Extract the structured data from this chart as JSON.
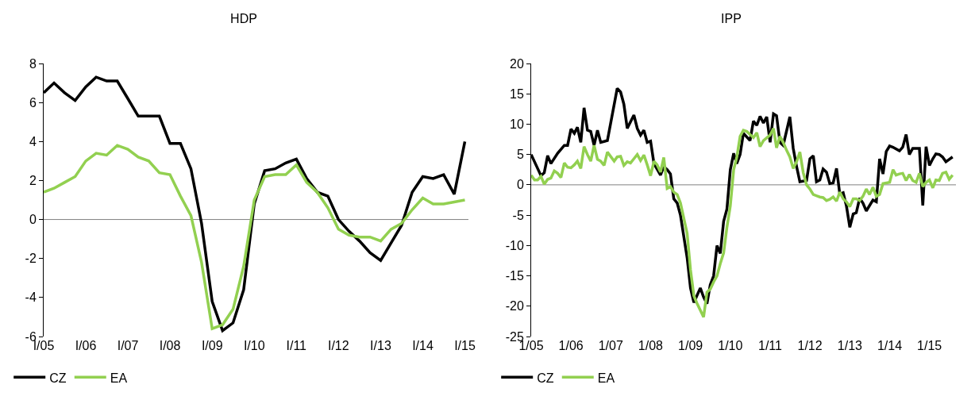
{
  "chart_data": [
    {
      "type": "line",
      "title": "HDP",
      "x": [
        "2005-01",
        "2005-04",
        "2005-07",
        "2005-10",
        "2006-01",
        "2006-04",
        "2006-07",
        "2006-10",
        "2007-01",
        "2007-04",
        "2007-07",
        "2007-10",
        "2008-01",
        "2008-04",
        "2008-07",
        "2008-10",
        "2009-01",
        "2009-04",
        "2009-07",
        "2009-10",
        "2010-01",
        "2010-04",
        "2010-07",
        "2010-10",
        "2011-01",
        "2011-04",
        "2011-07",
        "2011-10",
        "2012-01",
        "2012-04",
        "2012-07",
        "2012-10",
        "2013-01",
        "2013-04",
        "2013-07",
        "2013-10",
        "2014-01",
        "2014-04",
        "2014-07",
        "2014-10",
        "2015-01"
      ],
      "series": [
        {
          "name": "CZ",
          "color": "#000000",
          "values": [
            6.5,
            7.0,
            6.5,
            6.1,
            6.8,
            7.3,
            7.1,
            7.1,
            6.2,
            5.3,
            5.3,
            5.3,
            3.9,
            3.9,
            2.6,
            -0.2,
            -4.2,
            -5.7,
            -5.3,
            -3.6,
            0.8,
            2.5,
            2.6,
            2.9,
            3.1,
            2.1,
            1.4,
            1.2,
            0.0,
            -0.6,
            -1.1,
            -1.7,
            -2.1,
            -1.2,
            -0.3,
            1.4,
            2.2,
            2.1,
            2.3,
            1.3,
            4.0
          ]
        },
        {
          "name": "EA",
          "color": "#92d050",
          "values": [
            1.4,
            1.6,
            1.9,
            2.2,
            3.0,
            3.4,
            3.3,
            3.8,
            3.6,
            3.2,
            3.0,
            2.4,
            2.3,
            1.2,
            0.2,
            -2.2,
            -5.6,
            -5.4,
            -4.6,
            -2.4,
            1.0,
            2.2,
            2.3,
            2.3,
            2.8,
            1.9,
            1.4,
            0.6,
            -0.5,
            -0.8,
            -0.9,
            -0.9,
            -1.1,
            -0.5,
            -0.2,
            0.5,
            1.1,
            0.8,
            0.8,
            0.9,
            1.0
          ]
        }
      ],
      "xlim": [
        "2005-01",
        "2015-02"
      ],
      "xticks": [
        {
          "value": "2005-01",
          "label": "I/05"
        },
        {
          "value": "2006-01",
          "label": "I/06"
        },
        {
          "value": "2007-01",
          "label": "I/07"
        },
        {
          "value": "2008-01",
          "label": "I/08"
        },
        {
          "value": "2009-01",
          "label": "I/09"
        },
        {
          "value": "2010-01",
          "label": "I/10"
        },
        {
          "value": "2011-01",
          "label": "I/11"
        },
        {
          "value": "2012-01",
          "label": "I/12"
        },
        {
          "value": "2013-01",
          "label": "I/13"
        },
        {
          "value": "2014-01",
          "label": "I/14"
        },
        {
          "value": "2015-01",
          "label": "I/15"
        }
      ],
      "ylim": [
        -6,
        8
      ],
      "yticks": [
        -6,
        -4,
        -2,
        0,
        2,
        4,
        6,
        8
      ],
      "ref_lines": [
        {
          "axis": "y",
          "value": 0,
          "color": "#808080"
        }
      ],
      "grid": false,
      "legend": "bottom left",
      "marker": "none",
      "line_style": "solid"
    },
    {
      "type": "line",
      "title": "IPP",
      "series": [
        {
          "name": "CZ",
          "color": "#000000",
          "x": [
            "2005-01",
            "2005-04",
            "2005-05",
            "2005-06",
            "2005-07",
            "2005-09",
            "2005-11",
            "2005-12",
            "2006-01",
            "2006-02",
            "2006-03",
            "2006-04",
            "2006-05",
            "2006-06",
            "2006-07",
            "2006-08",
            "2006-09",
            "2006-10",
            "2006-12",
            "2007-03",
            "2007-04",
            "2007-05",
            "2007-06",
            "2007-08",
            "2007-09",
            "2007-10",
            "2007-11",
            "2007-12",
            "2008-01",
            "2008-02",
            "2008-04",
            "2008-05",
            "2008-06",
            "2008-07",
            "2008-08",
            "2008-09",
            "2008-10",
            "2008-12",
            "2009-01",
            "2009-02",
            "2009-04",
            "2009-05",
            "2009-06",
            "2009-07",
            "2009-08",
            "2009-09",
            "2009-10",
            "2009-11",
            "2009-12",
            "2010-01",
            "2010-02",
            "2010-03",
            "2010-04",
            "2010-05",
            "2010-07",
            "2010-08",
            "2010-09",
            "2010-10",
            "2010-11",
            "2010-12",
            "2011-01",
            "2011-02",
            "2011-03",
            "2011-04",
            "2011-05",
            "2011-07",
            "2011-08",
            "2011-09",
            "2011-10",
            "2011-12",
            "2012-01",
            "2012-02",
            "2012-03",
            "2012-04",
            "2012-05",
            "2012-06",
            "2012-07",
            "2012-08",
            "2012-09",
            "2012-10",
            "2012-11",
            "2012-12",
            "2013-01",
            "2013-02",
            "2013-03",
            "2013-04",
            "2013-05",
            "2013-06",
            "2013-08",
            "2013-09",
            "2013-10",
            "2013-11",
            "2013-12",
            "2014-01",
            "2014-02",
            "2014-04",
            "2014-05",
            "2014-06",
            "2014-07",
            "2014-08",
            "2014-10",
            "2014-11",
            "2014-12",
            "2015-01",
            "2015-02",
            "2015-03",
            "2015-04",
            "2015-05",
            "2015-06",
            "2015-07",
            "2015-08"
          ],
          "values": [
            5,
            1.5,
            2,
            4.8,
            3.5,
            5.2,
            6.5,
            6.5,
            9.2,
            8.5,
            9.5,
            7,
            12.7,
            9,
            8.8,
            6.5,
            9,
            7,
            7.3,
            15.9,
            15.3,
            13.3,
            9.3,
            11.5,
            9.3,
            8.2,
            9,
            7,
            7.2,
            3.5,
            1.6,
            3,
            2.5,
            1.8,
            -2.3,
            -3,
            -5,
            -12,
            -17,
            -19.4,
            -17,
            -18.5,
            -19.6,
            -16.5,
            -15,
            -10,
            -11.3,
            -6,
            -4,
            2.5,
            5.2,
            3.5,
            5,
            8.5,
            7.3,
            10.5,
            9.8,
            11.3,
            10.2,
            11.2,
            7,
            11.7,
            11.4,
            7,
            6.5,
            11.2,
            6,
            3,
            0.5,
            0.7,
            4.3,
            4.8,
            0.5,
            0.8,
            2.6,
            2.1,
            0.2,
            0.3,
            2.7,
            -1.5,
            -1.3,
            -3.5,
            -7,
            -4.8,
            -4.6,
            -2.2,
            -3,
            -4.3,
            -2.5,
            -2.8,
            4.3,
            1.8,
            5.5,
            6.4,
            6.2,
            5.6,
            6.2,
            8.3,
            5,
            6,
            6,
            -3.4,
            6.3,
            3.2,
            4.3,
            5.1,
            5,
            4.6,
            3.8,
            4.2,
            4.6
          ]
        },
        {
          "name": "EA",
          "color": "#92d050",
          "x": [
            "2005-01",
            "2005-02",
            "2005-03",
            "2005-04",
            "2005-05",
            "2005-06",
            "2005-07",
            "2005-08",
            "2005-09",
            "2005-10",
            "2005-11",
            "2005-12",
            "2006-01",
            "2006-02",
            "2006-03",
            "2006-04",
            "2006-05",
            "2006-06",
            "2006-07",
            "2006-08",
            "2006-09",
            "2006-10",
            "2006-11",
            "2006-12",
            "2007-02",
            "2007-03",
            "2007-04",
            "2007-05",
            "2007-06",
            "2007-07",
            "2007-08",
            "2007-09",
            "2007-10",
            "2007-11",
            "2007-12",
            "2008-01",
            "2008-02",
            "2008-03",
            "2008-04",
            "2008-05",
            "2008-06",
            "2008-07",
            "2008-08",
            "2008-09",
            "2008-10",
            "2008-12",
            "2009-01",
            "2009-02",
            "2009-03",
            "2009-05",
            "2009-06",
            "2009-07",
            "2009-08",
            "2009-09",
            "2009-10",
            "2009-11",
            "2009-12",
            "2010-01",
            "2010-02",
            "2010-03",
            "2010-04",
            "2010-05",
            "2010-06",
            "2010-07",
            "2010-08",
            "2010-09",
            "2010-10",
            "2010-11",
            "2011-01",
            "2011-02",
            "2011-03",
            "2011-04",
            "2011-05",
            "2011-06",
            "2011-07",
            "2011-08",
            "2011-09",
            "2011-10",
            "2011-11",
            "2011-12",
            "2012-01",
            "2012-02",
            "2012-03",
            "2012-04",
            "2012-05",
            "2012-06",
            "2012-07",
            "2012-08",
            "2012-09",
            "2012-10",
            "2012-11",
            "2012-12",
            "2013-01",
            "2013-02",
            "2013-03",
            "2013-04",
            "2013-05",
            "2013-06",
            "2013-07",
            "2013-08",
            "2013-09",
            "2013-10",
            "2013-11",
            "2014-01",
            "2014-02",
            "2014-03",
            "2014-04",
            "2014-05",
            "2014-06",
            "2014-07",
            "2014-08",
            "2014-09",
            "2014-10",
            "2014-11",
            "2014-12",
            "2015-01",
            "2015-02",
            "2015-03",
            "2015-04",
            "2015-05",
            "2015-06",
            "2015-07",
            "2015-08"
          ],
          "values": [
            1.6,
            0.8,
            0.8,
            1.4,
            0.1,
            0.9,
            1.1,
            2.3,
            1.9,
            1.2,
            3.6,
            2.9,
            2.8,
            3.3,
            3.9,
            2.7,
            6.3,
            5,
            3.9,
            6.5,
            4.2,
            3.9,
            3.2,
            5.4,
            3.9,
            4.6,
            4.7,
            3.2,
            3.8,
            3.6,
            4.3,
            5,
            4,
            4.9,
            3.3,
            1.5,
            3.9,
            3.3,
            2.1,
            4.5,
            -0.6,
            -0.3,
            -1.2,
            -1.6,
            -3,
            -8,
            -14,
            -18.3,
            -19.5,
            -21.8,
            -17.7,
            -17.2,
            -16,
            -15,
            -13,
            -11.2,
            -7,
            -3.5,
            2.5,
            4.5,
            8,
            9,
            8.8,
            8.3,
            7.8,
            8.6,
            6.3,
            7.3,
            8.2,
            9.3,
            6.1,
            8,
            7,
            5.7,
            4.6,
            2.7,
            3.8,
            5.4,
            2,
            0,
            -0.7,
            -1.6,
            -1.8,
            -2,
            -2.1,
            -2.6,
            -2.4,
            -2,
            -2.7,
            -1.2,
            -2.3,
            -2.8,
            -3.6,
            -2.3,
            -2.3,
            -2.6,
            -1.9,
            -0.7,
            -1.6,
            -0.4,
            -1.9,
            -1.6,
            0.2,
            0.4,
            2.5,
            1.6,
            1.8,
            1.9,
            0.7,
            1.7,
            0.7,
            0.4,
            1.9,
            -0.3,
            0.4,
            0.8,
            -0.5,
            0.8,
            0.7,
            1.9,
            2.1,
            0.9,
            1.6
          ]
        }
      ],
      "xlim": [
        "2005-01",
        "2015-09"
      ],
      "xticks": [
        {
          "value": "2005-01",
          "label": "1/05"
        },
        {
          "value": "2006-01",
          "label": "1/06"
        },
        {
          "value": "2007-01",
          "label": "1/07"
        },
        {
          "value": "2008-01",
          "label": "1/08"
        },
        {
          "value": "2009-01",
          "label": "1/09"
        },
        {
          "value": "2010-01",
          "label": "1/10"
        },
        {
          "value": "2011-01",
          "label": "1/11"
        },
        {
          "value": "2012-01",
          "label": "1/12"
        },
        {
          "value": "2013-01",
          "label": "1/13"
        },
        {
          "value": "2014-01",
          "label": "1/14"
        },
        {
          "value": "2015-01",
          "label": "1/15"
        }
      ],
      "ylim": [
        -25,
        20
      ],
      "yticks": [
        -25,
        -20,
        -15,
        -10,
        -5,
        0,
        5,
        10,
        15,
        20
      ],
      "ref_lines": [
        {
          "axis": "y",
          "value": 0,
          "color": "#808080"
        }
      ],
      "grid": false,
      "legend": "bottom left",
      "marker": "none",
      "line_style": "solid"
    }
  ]
}
